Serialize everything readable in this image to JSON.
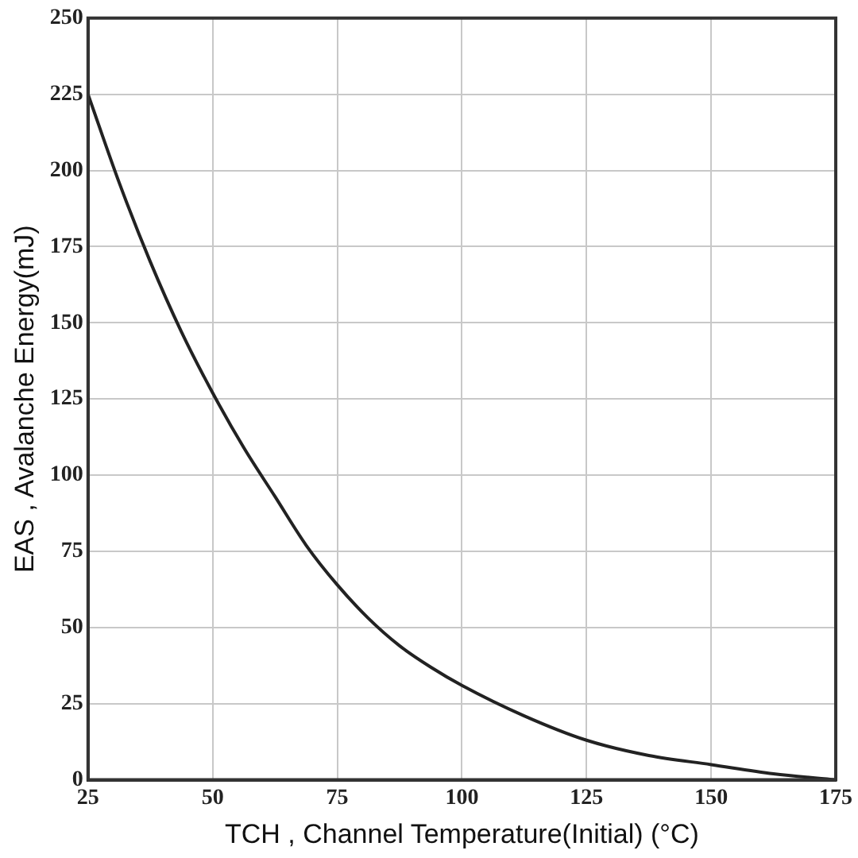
{
  "chart_data": {
    "type": "line",
    "xlabel": "TCH , Channel Temperature(Initial) (°C)",
    "ylabel": "EAS , Avalanche Energy(mJ)",
    "x": [
      25,
      31.25,
      37.5,
      43.75,
      50,
      56.25,
      62.5,
      68.75,
      75,
      81.25,
      87.5,
      93.75,
      100,
      112.5,
      125,
      137.5,
      150,
      162.5,
      175
    ],
    "series": [
      {
        "color": "#222222",
        "values": [
          225,
          196,
          170,
          147,
          127,
          109,
          93,
          77,
          64,
          53,
          44,
          37,
          31,
          21,
          13,
          8,
          5,
          2,
          0
        ]
      }
    ],
    "xlim": [
      25,
      175
    ],
    "xticks": [
      25,
      50,
      75,
      100,
      125,
      150,
      175
    ],
    "ylim": [
      0,
      250
    ],
    "yticks": [
      0,
      25,
      50,
      75,
      100,
      125,
      150,
      175,
      200,
      225,
      250
    ],
    "grid": true,
    "legend": false,
    "marker": "none",
    "line_style": "solid"
  }
}
